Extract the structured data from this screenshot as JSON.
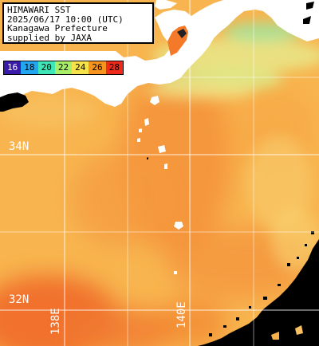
{
  "info": {
    "line1": "HIMAWARI SST",
    "line2": "2025/06/17 10:00 (UTC)",
    "line3": "Kanagawa Prefecture",
    "line4": "supplied by JAXA"
  },
  "legend": [
    {
      "label": "16",
      "color": "#3a1aa8",
      "text_color": "#ffffff"
    },
    {
      "label": "18",
      "color": "#22a6f0",
      "text_color": "#000000"
    },
    {
      "label": "20",
      "color": "#3fe6b8",
      "text_color": "#000000"
    },
    {
      "label": "22",
      "color": "#a8ee68",
      "text_color": "#000000"
    },
    {
      "label": "24",
      "color": "#f6e24a",
      "text_color": "#000000"
    },
    {
      "label": "26",
      "color": "#f7941d",
      "text_color": "#000000"
    },
    {
      "label": "28",
      "color": "#ee2a1a",
      "text_color": "#000000"
    }
  ],
  "grid": {
    "lat_labels": [
      "34N",
      "32N"
    ],
    "lon_labels": [
      "138E",
      "140E"
    ]
  },
  "colors": {
    "land": "#ffffff",
    "no_data": "#000000",
    "sst_base": "#f8b24e",
    "grid": "#ffffff"
  }
}
